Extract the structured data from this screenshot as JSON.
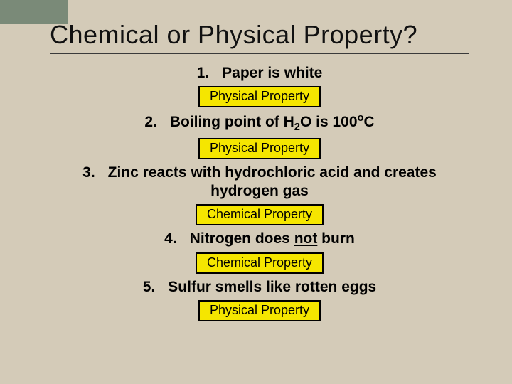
{
  "title": "Chemical or Physical Property?",
  "colors": {
    "background": "#d4cbb8",
    "stripe": "#7a8a78",
    "badge_bg": "#f5e600",
    "badge_border": "#000000",
    "text": "#000000",
    "rule": "#3a3a3a"
  },
  "typography": {
    "title_fontsize": 36,
    "question_fontsize": 21,
    "badge_fontsize": 18,
    "font_family": "Comic Sans MS"
  },
  "items": [
    {
      "num": "1.",
      "text": "Paper is white",
      "answer": "Physical Property"
    },
    {
      "num": "2.",
      "text_html": "Boiling point of H<sub>2</sub>O is 100<sup>o</sup>C",
      "answer": "Physical Property"
    },
    {
      "num": "3.",
      "text": "Zinc reacts with hydrochloric acid and creates hydrogen gas",
      "answer": "Chemical Property"
    },
    {
      "num": "4.",
      "text_html": "Nitrogen does <span class=\"not-underline\">not</span> burn",
      "answer": "Chemical Property"
    },
    {
      "num": "5.",
      "text": "Sulfur smells like rotten eggs",
      "answer": "Physical Property"
    }
  ]
}
